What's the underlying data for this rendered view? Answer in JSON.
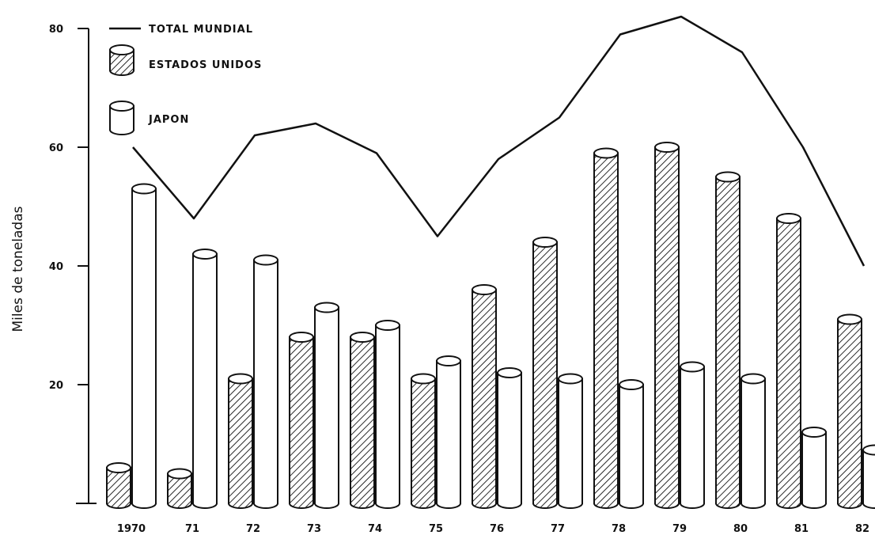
{
  "chart_data": {
    "type": "bar",
    "title": "",
    "xlabel": "",
    "ylabel": "Miles de toneladas",
    "ylim": [
      0,
      80
    ],
    "yticks": [
      "20",
      "40",
      "60",
      "80"
    ],
    "categories": [
      "1970",
      "71",
      "72",
      "73",
      "74",
      "75",
      "76",
      "77",
      "78",
      "79",
      "80",
      "81",
      "82"
    ],
    "series": [
      {
        "name": "ESTADOS UNIDOS",
        "kind": "bar",
        "style": "hatched",
        "values": [
          6,
          5,
          21,
          28,
          28,
          21,
          36,
          44,
          59,
          60,
          55,
          48,
          31
        ]
      },
      {
        "name": "JAPON",
        "kind": "bar",
        "style": "plain",
        "values": [
          53,
          42,
          41,
          33,
          30,
          24,
          22,
          21,
          20,
          23,
          21,
          12,
          9
        ]
      },
      {
        "name": "TOTAL MUNDIAL",
        "kind": "line",
        "values": [
          60,
          48,
          62,
          64,
          59,
          45,
          58,
          65,
          79,
          82,
          76,
          60,
          40
        ]
      }
    ],
    "legend": {
      "position": "top-left",
      "entries": [
        "TOTAL MUNDIAL",
        "ESTADOS UNIDOS",
        "JAPON"
      ]
    },
    "grid": false,
    "colors": {
      "ink": "#111111",
      "background": "#ffffff"
    }
  }
}
